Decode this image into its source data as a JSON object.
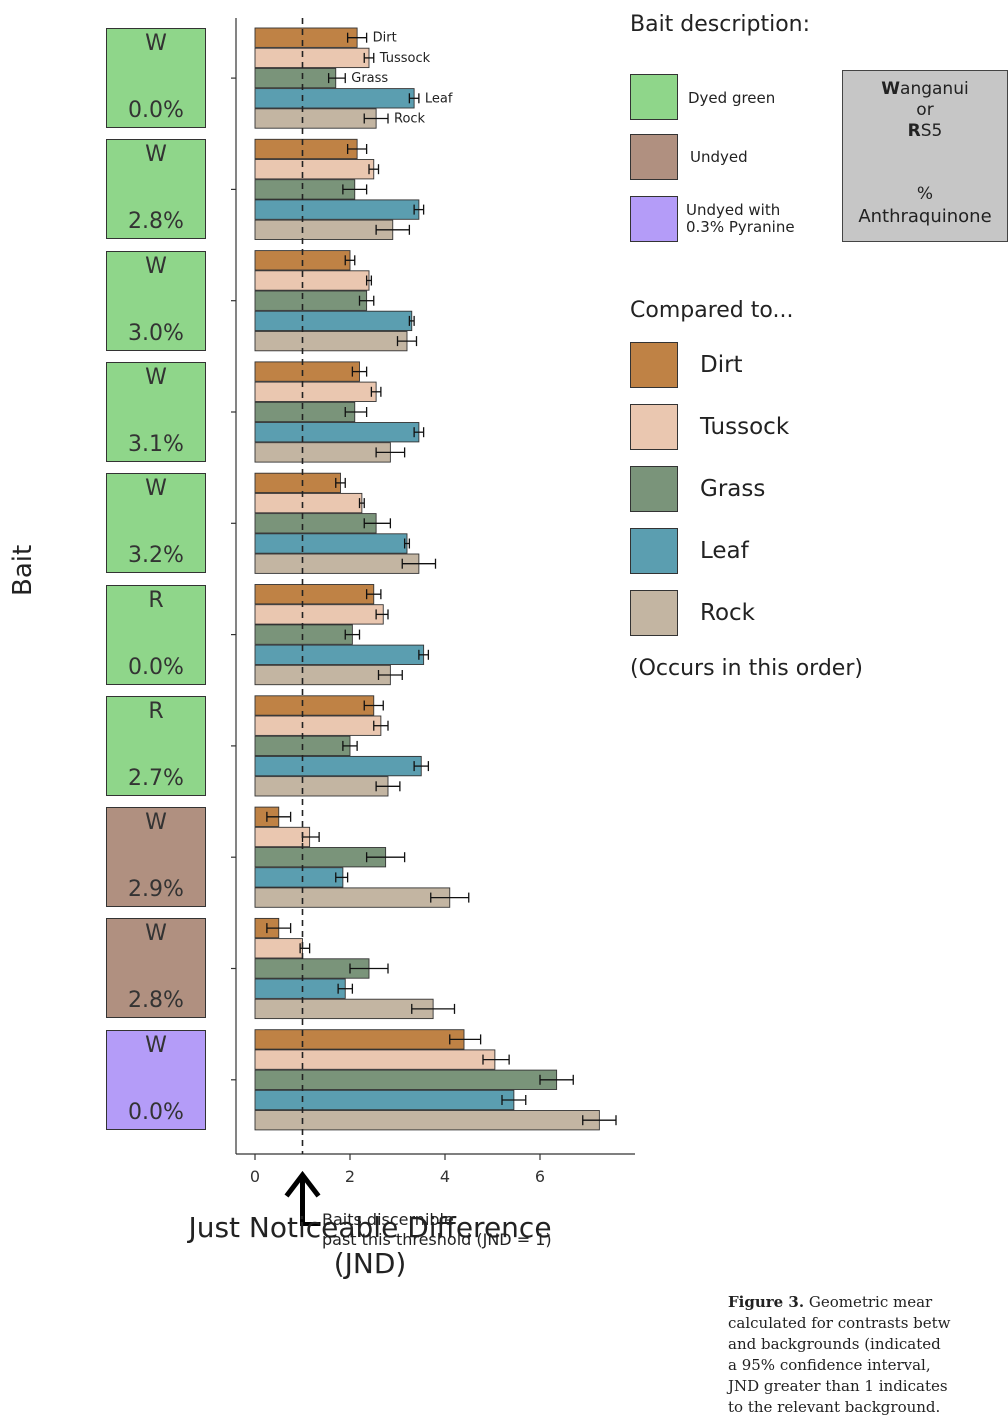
{
  "colors": {
    "dyed_green": "#8fd68a",
    "undyed": "#b09080",
    "pyranine": "#b49cf8",
    "key_bg": "#c6c6c6",
    "Dirt": "#bf8245",
    "Tussock": "#eac7b0",
    "Grass": "#7a947a",
    "Leaf": "#5b9eb0",
    "Rock": "#c3b5a2"
  },
  "baits": [
    {
      "code": "W",
      "pct": "0.0%",
      "dye": "dyed_green"
    },
    {
      "code": "W",
      "pct": "2.8%",
      "dye": "dyed_green"
    },
    {
      "code": "W",
      "pct": "3.0%",
      "dye": "dyed_green"
    },
    {
      "code": "W",
      "pct": "3.1%",
      "dye": "dyed_green"
    },
    {
      "code": "W",
      "pct": "3.2%",
      "dye": "dyed_green"
    },
    {
      "code": "R",
      "pct": "0.0%",
      "dye": "dyed_green"
    },
    {
      "code": "R",
      "pct": "2.7%",
      "dye": "dyed_green"
    },
    {
      "code": "W",
      "pct": "2.9%",
      "dye": "undyed"
    },
    {
      "code": "W",
      "pct": "2.8%",
      "dye": "undyed"
    },
    {
      "code": "W",
      "pct": "0.0%",
      "dye": "pyranine"
    }
  ],
  "legend": {
    "bait_title": "Bait description:",
    "bait_items": [
      {
        "label": "Dyed green",
        "dye": "dyed_green"
      },
      {
        "label": "Undyed",
        "dye": "undyed"
      },
      {
        "label": "Undyed with 0.3% Pyranine",
        "line1": "Undyed with",
        "line2": "0.3% Pyranine",
        "dye": "pyranine"
      }
    ],
    "key_box": {
      "line1_bold": "W",
      "line1_rest": "anganui",
      "line2": "or",
      "line3_bold": "R",
      "line3_rest": "S5",
      "line4": "%",
      "line5": "Anthraquinone"
    },
    "compared_title": "Compared to...",
    "compared_items": [
      "Dirt",
      "Tussock",
      "Grass",
      "Leaf",
      "Rock"
    ],
    "order_note": "(Occurs in this order)"
  },
  "threshold_note": {
    "line1": "Baits discernible",
    "line2": "past this threshold (JND = 1)"
  },
  "caption_lines": [
    {
      "bold": "Figure 3.",
      "text": " Geometric mear"
    },
    {
      "bold": "",
      "text": "calculated for contrasts betw"
    },
    {
      "bold": "",
      "text": "and backgrounds (indicated"
    },
    {
      "bold": "",
      "text": "a 95% confidence interval,"
    },
    {
      "bold": "",
      "text": "JND greater than 1 indicates"
    },
    {
      "bold": "",
      "text": "to the relevant background."
    }
  ],
  "chart_data": {
    "type": "bar",
    "orientation": "horizontal",
    "title": "",
    "xlabel": "Just Noticeable Difference (JND)",
    "ylabel": "Bait",
    "xlim": [
      -0.4,
      8.0
    ],
    "xticks": [
      0,
      2,
      4,
      6
    ],
    "threshold": 1,
    "grid": false,
    "bar_labels": [
      "Dirt",
      "Tussock",
      "Grass",
      "Leaf",
      "Rock"
    ],
    "categories": [
      "W 0.0%",
      "W 2.8%",
      "W 3.0%",
      "W 3.1%",
      "W 3.2%",
      "R 0.0%",
      "R 2.7%",
      "W 2.9%",
      "W 2.8%",
      "W 0.0%"
    ],
    "series": [
      {
        "name": "Dirt",
        "values": [
          2.15,
          2.15,
          2.0,
          2.2,
          1.8,
          2.5,
          2.5,
          0.5,
          0.5,
          4.4
        ],
        "ci_low": [
          1.95,
          1.95,
          1.9,
          2.05,
          1.7,
          2.35,
          2.3,
          0.25,
          0.25,
          4.1
        ],
        "ci_high": [
          2.35,
          2.35,
          2.1,
          2.35,
          1.9,
          2.65,
          2.7,
          0.75,
          0.75,
          4.75
        ]
      },
      {
        "name": "Tussock",
        "values": [
          2.4,
          2.5,
          2.4,
          2.55,
          2.25,
          2.7,
          2.65,
          1.15,
          1.0,
          5.05
        ],
        "ci_low": [
          2.3,
          2.4,
          2.35,
          2.45,
          2.2,
          2.55,
          2.5,
          1.0,
          0.95,
          4.8
        ],
        "ci_high": [
          2.5,
          2.6,
          2.45,
          2.65,
          2.3,
          2.8,
          2.8,
          1.35,
          1.15,
          5.35
        ]
      },
      {
        "name": "Grass",
        "values": [
          1.7,
          2.1,
          2.35,
          2.1,
          2.55,
          2.05,
          2.0,
          2.75,
          2.4,
          6.35
        ],
        "ci_low": [
          1.55,
          1.85,
          2.2,
          1.9,
          2.3,
          1.9,
          1.85,
          2.35,
          2.0,
          6.0
        ],
        "ci_high": [
          1.9,
          2.35,
          2.5,
          2.35,
          2.85,
          2.2,
          2.15,
          3.15,
          2.8,
          6.7
        ]
      },
      {
        "name": "Leaf",
        "values": [
          3.35,
          3.45,
          3.3,
          3.45,
          3.2,
          3.55,
          3.5,
          1.85,
          1.9,
          5.45
        ],
        "ci_low": [
          3.25,
          3.35,
          3.25,
          3.35,
          3.15,
          3.45,
          3.35,
          1.7,
          1.75,
          5.2
        ],
        "ci_high": [
          3.45,
          3.55,
          3.35,
          3.55,
          3.25,
          3.65,
          3.65,
          1.95,
          2.05,
          5.7
        ]
      },
      {
        "name": "Rock",
        "values": [
          2.55,
          2.9,
          3.2,
          2.85,
          3.45,
          2.85,
          2.8,
          4.1,
          3.75,
          7.25
        ],
        "ci_low": [
          2.3,
          2.55,
          3.0,
          2.55,
          3.1,
          2.6,
          2.55,
          3.7,
          3.3,
          6.9
        ],
        "ci_high": [
          2.8,
          3.25,
          3.4,
          3.15,
          3.8,
          3.1,
          3.05,
          4.5,
          4.2,
          7.6
        ]
      }
    ]
  }
}
